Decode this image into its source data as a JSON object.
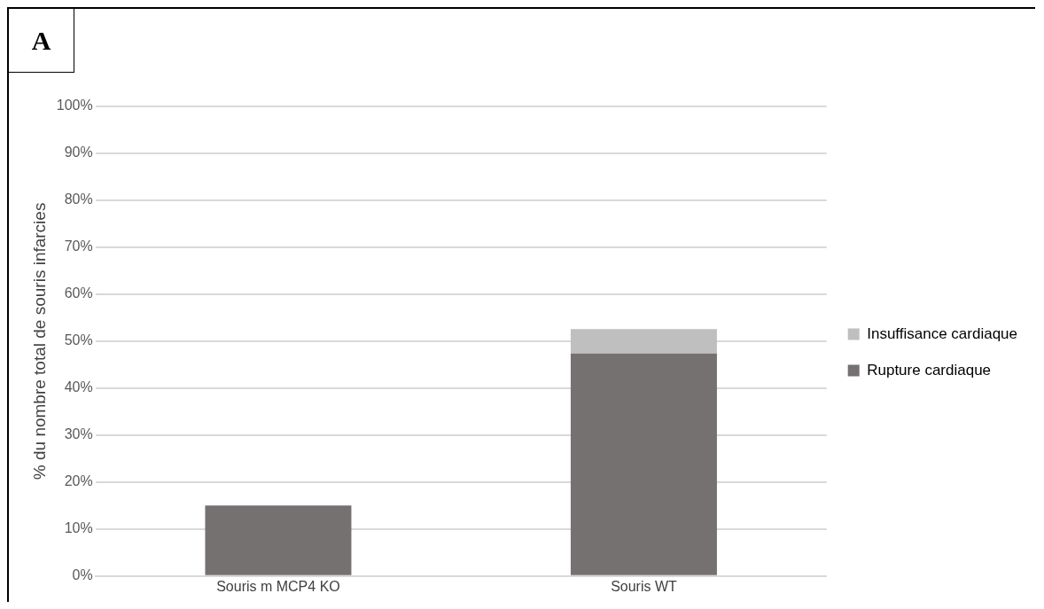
{
  "chart_data": {
    "type": "bar",
    "stacked": true,
    "categories": [
      "Souris m MCP4 KO",
      "Souris WT"
    ],
    "series": [
      {
        "name": "Rupture cardiaque",
        "color": "#767171",
        "values": [
          15,
          47.4
        ]
      },
      {
        "name": "Insuffisance cardiaque",
        "color": "#bfbfbf",
        "values": [
          0,
          5.2
        ]
      }
    ],
    "ylabel": "% du nombre total de souris infarcies",
    "ylim": [
      0,
      100
    ],
    "yticks": [
      {
        "value": 0,
        "label": "0%"
      },
      {
        "value": 10,
        "label": "10%"
      },
      {
        "value": 20,
        "label": "20%"
      },
      {
        "value": 30,
        "label": "30%"
      },
      {
        "value": 40,
        "label": "40%"
      },
      {
        "value": 50,
        "label": "50%"
      },
      {
        "value": 60,
        "label": "60%"
      },
      {
        "value": 70,
        "label": "70%"
      },
      {
        "value": 80,
        "label": "80%"
      },
      {
        "value": 90,
        "label": "90%"
      },
      {
        "value": 100,
        "label": "100%"
      }
    ],
    "grid": "y",
    "legend": "right",
    "annotations": [
      "A"
    ]
  }
}
